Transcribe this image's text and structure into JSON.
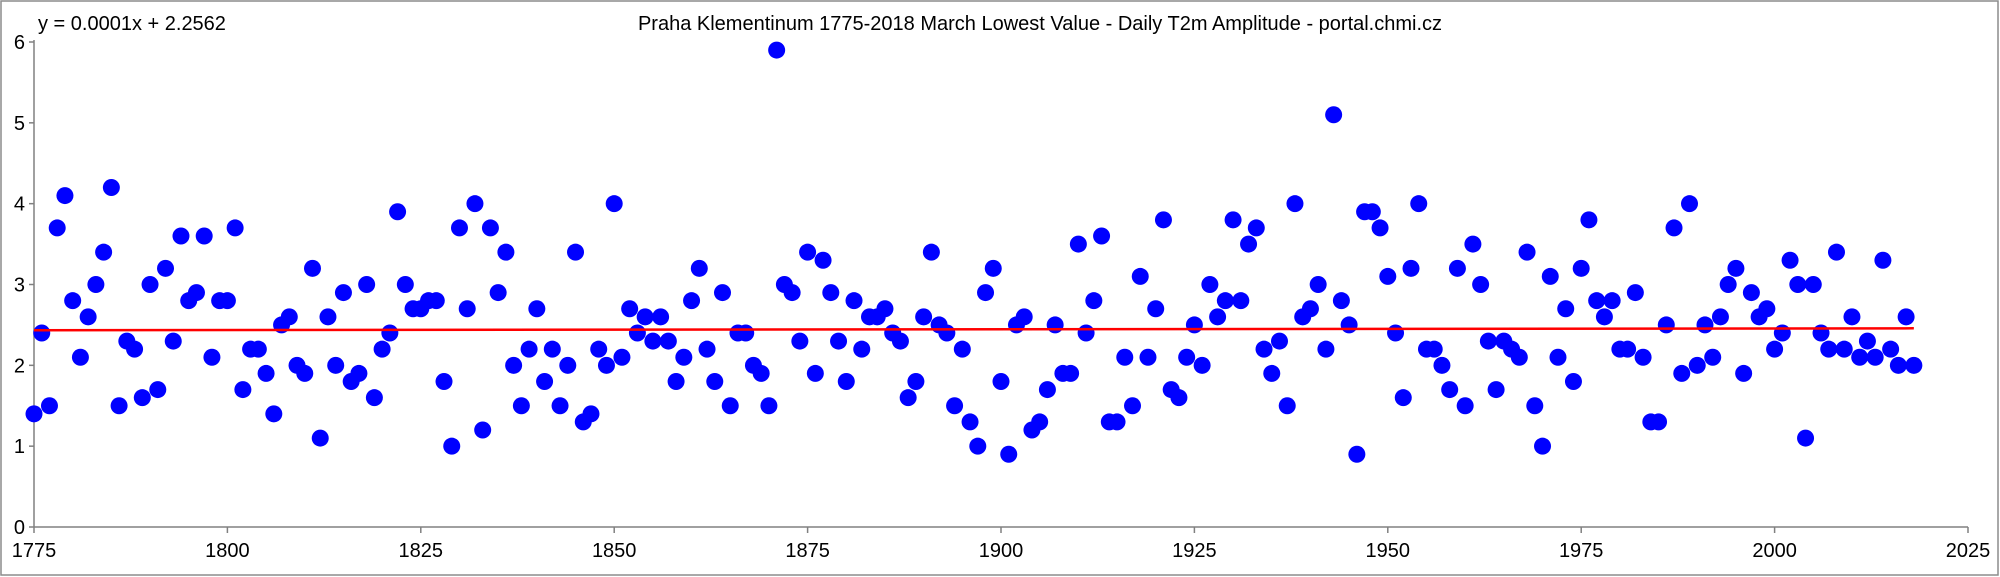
{
  "chart_data": {
    "type": "scatter",
    "title": "Praha Klementinum 1775-2018 March Lowest Value - Daily T2m Amplitude - portal.chmi.cz",
    "trend_equation": "y = 0.0001x + 2.2562",
    "xlabel": "",
    "ylabel": "",
    "xlim": [
      1775,
      2025
    ],
    "ylim": [
      0,
      6
    ],
    "x_ticks": [
      1775,
      1800,
      1825,
      1850,
      1875,
      1900,
      1925,
      1950,
      1975,
      2000,
      2025
    ],
    "y_ticks": [
      0,
      1,
      2,
      3,
      4,
      5,
      6
    ],
    "grid": false,
    "legend": "none",
    "colors": {
      "points": "#0000ff",
      "trend": "#ff0000",
      "axis": "#808080",
      "frame": "#808080"
    },
    "trend": {
      "slope": 0.0001,
      "intercept": 2.2562,
      "x_start": 1775,
      "x_end": 2018
    },
    "series": [
      {
        "name": "March lowest daily T2m amplitude",
        "x": [
          1775,
          1776,
          1777,
          1778,
          1779,
          1780,
          1781,
          1782,
          1783,
          1784,
          1785,
          1786,
          1787,
          1788,
          1789,
          1790,
          1791,
          1792,
          1793,
          1794,
          1795,
          1796,
          1797,
          1798,
          1799,
          1800,
          1801,
          1802,
          1803,
          1804,
          1805,
          1806,
          1807,
          1808,
          1809,
          1810,
          1811,
          1812,
          1813,
          1814,
          1815,
          1816,
          1817,
          1818,
          1819,
          1820,
          1821,
          1822,
          1823,
          1824,
          1825,
          1826,
          1827,
          1828,
          1829,
          1830,
          1831,
          1832,
          1833,
          1834,
          1835,
          1836,
          1837,
          1838,
          1839,
          1840,
          1841,
          1842,
          1843,
          1844,
          1845,
          1846,
          1847,
          1848,
          1849,
          1850,
          1851,
          1852,
          1853,
          1854,
          1855,
          1856,
          1857,
          1858,
          1859,
          1860,
          1861,
          1862,
          1863,
          1864,
          1865,
          1866,
          1867,
          1868,
          1869,
          1870,
          1871,
          1872,
          1873,
          1874,
          1875,
          1876,
          1877,
          1878,
          1879,
          1880,
          1881,
          1882,
          1883,
          1884,
          1885,
          1886,
          1887,
          1888,
          1889,
          1890,
          1891,
          1892,
          1893,
          1894,
          1895,
          1896,
          1897,
          1898,
          1899,
          1900,
          1901,
          1902,
          1903,
          1904,
          1905,
          1906,
          1907,
          1908,
          1909,
          1910,
          1911,
          1912,
          1913,
          1914,
          1915,
          1916,
          1917,
          1918,
          1919,
          1920,
          1921,
          1922,
          1923,
          1924,
          1925,
          1926,
          1927,
          1928,
          1929,
          1930,
          1931,
          1932,
          1933,
          1934,
          1935,
          1936,
          1937,
          1938,
          1939,
          1940,
          1941,
          1942,
          1943,
          1944,
          1945,
          1946,
          1947,
          1948,
          1949,
          1950,
          1951,
          1952,
          1953,
          1954,
          1955,
          1956,
          1957,
          1958,
          1959,
          1960,
          1961,
          1962,
          1963,
          1964,
          1965,
          1966,
          1967,
          1968,
          1969,
          1970,
          1971,
          1972,
          1973,
          1974,
          1975,
          1976,
          1977,
          1978,
          1979,
          1980,
          1981,
          1982,
          1983,
          1984,
          1985,
          1986,
          1987,
          1988,
          1989,
          1990,
          1991,
          1992,
          1993,
          1994,
          1995,
          1996,
          1997,
          1998,
          1999,
          2000,
          2001,
          2002,
          2003,
          2004,
          2005,
          2006,
          2007,
          2008,
          2009,
          2010,
          2011,
          2012,
          2013,
          2014,
          2015,
          2016,
          2017,
          2018
        ],
        "y": [
          1.4,
          2.4,
          1.5,
          3.7,
          4.1,
          2.8,
          2.1,
          2.6,
          3.0,
          3.4,
          4.2,
          1.5,
          2.3,
          2.2,
          1.6,
          3.0,
          1.7,
          3.2,
          2.3,
          3.6,
          2.8,
          2.9,
          3.6,
          2.1,
          2.8,
          2.8,
          3.7,
          1.7,
          2.2,
          2.2,
          1.9,
          1.4,
          2.5,
          2.6,
          2.0,
          1.9,
          3.2,
          1.1,
          2.6,
          2.0,
          2.9,
          1.8,
          1.9,
          3.0,
          1.6,
          2.2,
          2.4,
          3.9,
          3.0,
          2.7,
          2.7,
          2.8,
          2.8,
          1.8,
          1.0,
          3.7,
          2.7,
          4.0,
          1.2,
          3.7,
          2.9,
          3.4,
          2.0,
          1.5,
          2.2,
          2.7,
          1.8,
          2.2,
          1.5,
          2.0,
          3.4,
          1.3,
          1.4,
          2.2,
          2.0,
          4.0,
          2.1,
          2.7,
          2.4,
          2.6,
          2.3,
          2.6,
          2.3,
          1.8,
          2.1,
          2.8,
          3.2,
          2.2,
          1.8,
          2.9,
          1.5,
          2.4,
          2.4,
          2.0,
          1.9,
          1.5,
          5.9,
          3.0,
          2.9,
          2.3,
          3.4,
          1.9,
          3.3,
          2.9,
          2.3,
          1.8,
          2.8,
          2.2,
          2.6,
          2.6,
          2.7,
          2.4,
          2.3,
          1.6,
          1.8,
          2.6,
          3.4,
          2.5,
          2.4,
          1.5,
          2.2,
          1.3,
          1.0,
          2.9,
          3.2,
          1.8,
          0.9,
          2.5,
          2.6,
          1.2,
          1.3,
          1.7,
          2.5,
          1.9,
          1.9,
          3.5,
          2.4,
          2.8,
          3.6,
          1.3,
          1.3,
          2.1,
          1.5,
          3.1,
          2.1,
          2.7,
          3.8,
          1.7,
          1.6,
          2.1,
          2.5,
          2.0,
          3.0,
          2.6,
          2.8,
          3.8,
          2.8,
          3.5,
          3.7,
          2.2,
          1.9,
          2.3,
          1.5,
          4.0,
          2.6,
          2.7,
          3.0,
          2.2,
          5.1,
          2.8,
          2.5,
          0.9,
          3.9,
          3.9,
          3.7,
          3.1,
          2.4,
          1.6,
          3.2,
          4.0,
          2.2,
          2.2,
          2.0,
          1.7,
          3.2,
          1.5,
          3.5,
          3.0,
          2.3,
          1.7,
          2.3,
          2.2,
          2.1,
          3.4,
          1.5,
          1.0,
          3.1,
          2.1,
          2.7,
          1.8,
          3.2,
          3.8,
          2.8,
          2.6,
          2.8,
          2.2,
          2.2,
          2.9,
          2.1,
          1.3,
          1.3,
          2.5,
          3.7,
          1.9,
          4.0,
          2.0,
          2.5,
          2.1,
          2.6,
          3.0,
          3.2,
          1.9,
          2.9,
          2.6,
          2.7,
          2.2,
          2.4,
          3.3,
          3.0,
          1.1,
          3.0,
          2.4,
          2.2,
          3.4,
          2.2,
          2.6,
          2.1,
          2.3,
          2.1,
          3.3,
          2.2,
          2.0,
          2.6,
          2.0
        ]
      }
    ]
  }
}
